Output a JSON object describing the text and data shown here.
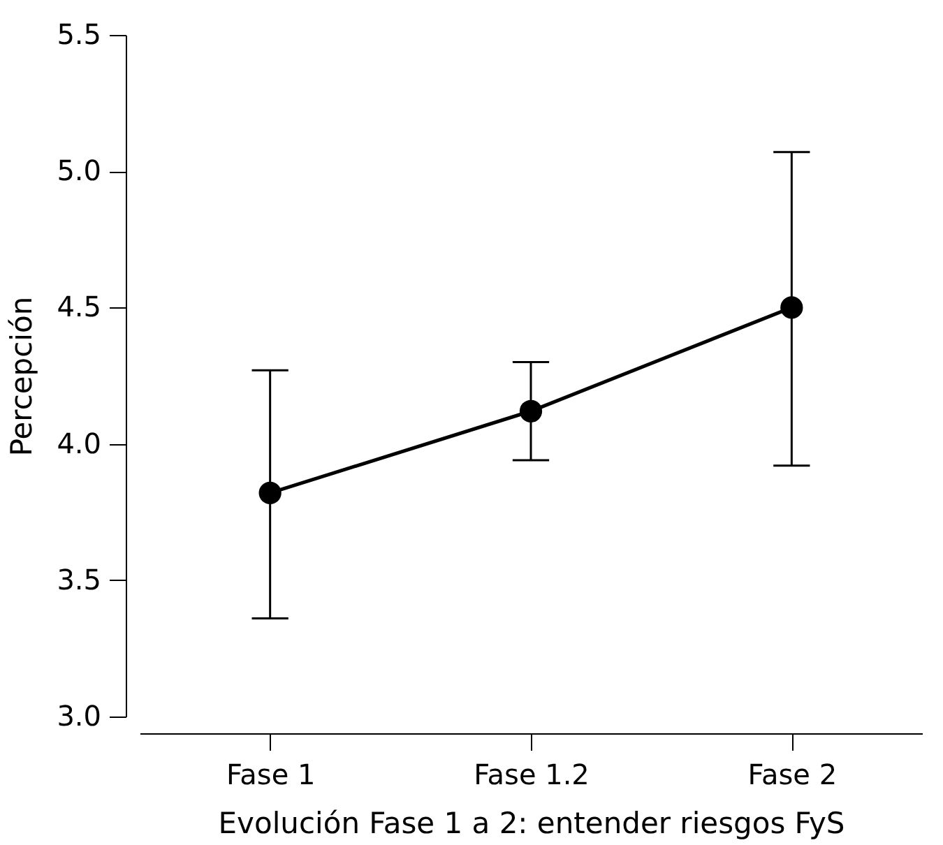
{
  "chart_data": {
    "type": "line",
    "xlabel": "Evolución Fase 1 a 2: entender riesgos FyS",
    "ylabel": "Percepción",
    "categories": [
      "Fase 1",
      "Fase 1.2",
      "Fase 2"
    ],
    "series": [
      {
        "color": "#000000",
        "values": [
          3.82,
          4.12,
          4.5
        ],
        "errors": [
          [
            3.36,
            4.27
          ],
          [
            3.94,
            4.3
          ],
          [
            3.92,
            5.07
          ]
        ]
      }
    ],
    "ylim": [
      3.0,
      5.5
    ],
    "yticks": [
      {
        "value": 3,
        "label": "3.0"
      },
      3.5,
      {
        "value": 4,
        "label": "4.0"
      },
      4.5,
      {
        "value": 5,
        "label": "5.0"
      },
      5.5
    ],
    "grid": false,
    "marker": "circle",
    "line_style": "solid"
  }
}
